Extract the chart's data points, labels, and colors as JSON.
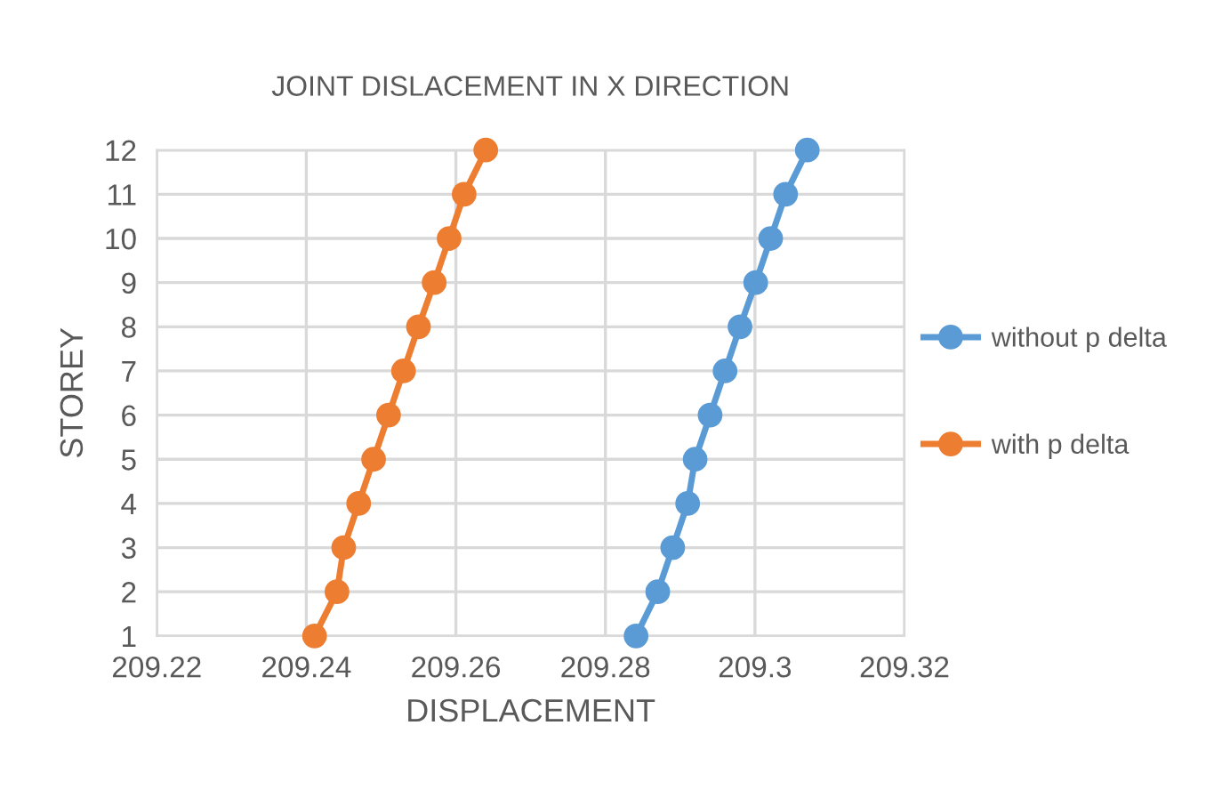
{
  "chart_data": {
    "type": "line",
    "title": "JOINT DISLACEMENT IN X DIRECTION",
    "xlabel": "DISPLACEMENT",
    "ylabel": "STOREY",
    "series": [
      {
        "name": "without p delta",
        "color": "#5b9bd5",
        "x": [
          209.2841,
          209.287,
          209.289,
          209.291,
          209.292,
          209.294,
          209.296,
          209.298,
          209.3001,
          209.3021,
          209.3041,
          209.307
        ],
        "values": [
          1,
          2,
          3,
          4,
          5,
          6,
          7,
          8,
          9,
          10,
          11,
          12
        ]
      },
      {
        "name": "with p delta",
        "color": "#ed7d31",
        "x": [
          209.2411,
          209.2441,
          209.245,
          209.247,
          209.249,
          209.251,
          209.253,
          209.255,
          209.2571,
          209.2591,
          209.2611,
          209.264
        ],
        "values": [
          1,
          2,
          3,
          4,
          5,
          6,
          7,
          8,
          9,
          10,
          11,
          12
        ]
      }
    ],
    "xlim": [
      209.22,
      209.32
    ],
    "xticks": [
      209.22,
      209.24,
      209.26,
      209.28,
      209.3,
      209.32
    ],
    "ylim": [
      1,
      12
    ],
    "yticks": [
      1,
      2,
      3,
      4,
      5,
      6,
      7,
      8,
      9,
      10,
      11,
      12
    ],
    "grid": true,
    "legend": "right",
    "marker": "circle",
    "line_style": "solid"
  }
}
